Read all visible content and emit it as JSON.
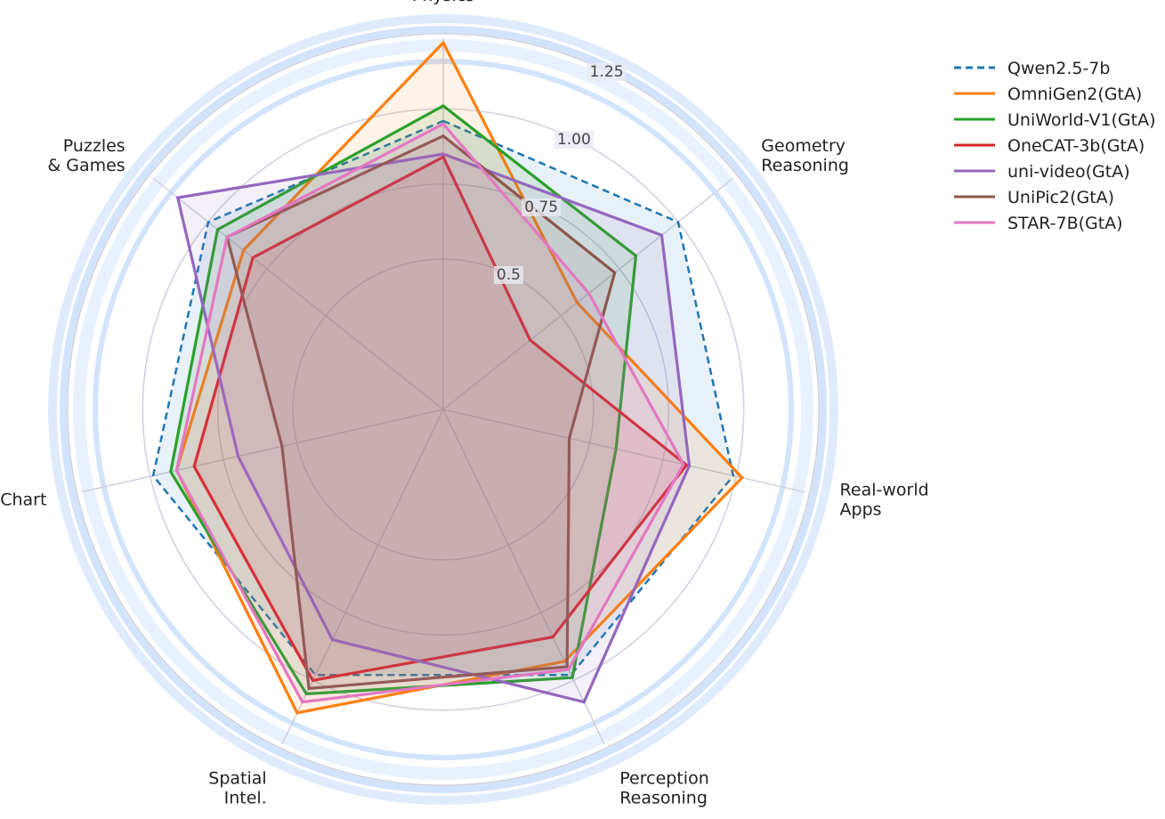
{
  "chart_data": {
    "type": "radar",
    "categories": [
      "Physics",
      "Geometry\nReasoning",
      "Real-world\nApps",
      "Perception\nReasoning",
      "Spatial\nIntel.",
      "Chart",
      "Puzzles\n& Games"
    ],
    "rlim": [
      0,
      1.3
    ],
    "rticks": [
      0.5,
      0.75,
      {
        "value": 1.0,
        "label": "1.00"
      },
      1.25
    ],
    "legend": "upper right",
    "series": [
      {
        "name": "Qwen2.5-7b",
        "color": "#1f77b4",
        "dashed": true,
        "values": [
          0.96,
          1.0,
          0.99,
          0.98,
          0.98,
          0.99,
          1.0
        ]
      },
      {
        "name": "OmniGen2(GtA)",
        "color": "#ff7f0e",
        "values": [
          1.22,
          0.57,
          1.02,
          0.93,
          1.12,
          0.91,
          0.85
        ]
      },
      {
        "name": "UniWorld-V1(GtA)",
        "color": "#2ca02c",
        "values": [
          1.01,
          0.82,
          0.59,
          0.99,
          1.05,
          0.93,
          0.96
        ]
      },
      {
        "name": "OneCAT-3b(GtA)",
        "color": "#d62728",
        "values": [
          0.84,
          0.37,
          0.83,
          0.84,
          1.0,
          0.85,
          0.81
        ]
      },
      {
        "name": "uni-video(GtA)",
        "color": "#9467bd",
        "values": [
          0.85,
          0.93,
          0.84,
          1.08,
          0.85,
          0.7,
          1.13
        ]
      },
      {
        "name": "UniPic2(GtA)",
        "color": "#8c564b",
        "values": [
          0.91,
          0.73,
          0.43,
          0.95,
          1.03,
          0.55,
          0.92
        ]
      },
      {
        "name": "STAR-7B(GtA)",
        "color": "#e377c2",
        "values": [
          0.95,
          0.62,
          0.82,
          0.96,
          1.08,
          0.91,
          0.92
        ]
      }
    ]
  }
}
